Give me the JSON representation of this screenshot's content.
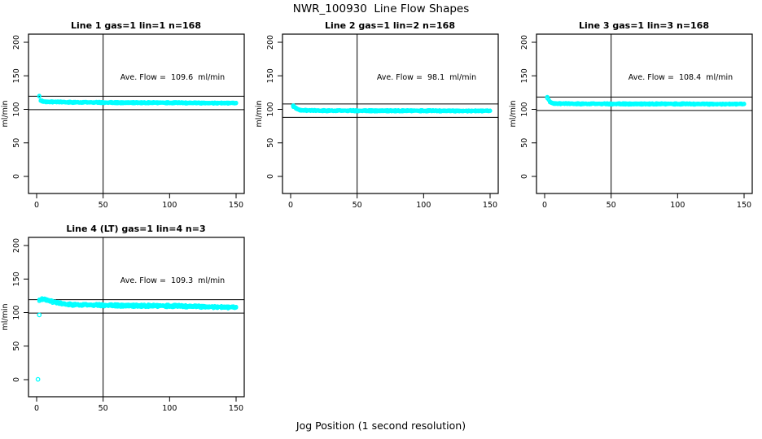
{
  "figure": {
    "title": "NWR_100930  Line Flow Shapes",
    "xlabel": "Jog Position (1 second resolution)",
    "background_color": "#FFFFFF",
    "axis_color": "#000000"
  },
  "chart_data": {
    "type": "scatter",
    "title": "NWR_100930  Line Flow Shapes",
    "xlabel": "Jog Position (1 second resolution)",
    "ylabel": "ml/min",
    "point_color": "#00FFFF",
    "line_color": "#000000",
    "x_ticks": [
      0,
      50,
      100,
      150
    ],
    "y_ticks": [
      0,
      50,
      100,
      150,
      200
    ],
    "xlim": [
      -6,
      156
    ],
    "ylim": [
      -25,
      212
    ],
    "vline_x": 50,
    "grid": false,
    "legend": "none",
    "panels": [
      {
        "title": "Line 1 gas=1 lin=1 n=168",
        "line": 1,
        "gas": 1,
        "lin": 1,
        "n": 168,
        "annotation": "Ave. Flow =  109.6  ml/min",
        "ave_flow": 109.6,
        "ref_lines": [
          119.6,
          99.6
        ],
        "x_range": [
          2,
          150
        ],
        "band": 0.9,
        "outliers": [],
        "profile": [
          [
            2,
            120
          ],
          [
            3,
            113
          ],
          [
            5,
            111.5
          ],
          [
            10,
            111
          ],
          [
            30,
            110.5
          ],
          [
            60,
            110
          ],
          [
            100,
            109.8
          ],
          [
            150,
            109.3
          ]
        ]
      },
      {
        "title": "Line 2 gas=1 lin=2 n=168",
        "line": 2,
        "gas": 1,
        "lin": 2,
        "n": 168,
        "annotation": "Ave. Flow =  98.1  ml/min",
        "ave_flow": 98.1,
        "ref_lines": [
          108.1,
          88.1
        ],
        "x_range": [
          2,
          150
        ],
        "band": 0.9,
        "outliers": [
          [
            2,
            105.5
          ]
        ],
        "profile": [
          [
            2,
            104.5
          ],
          [
            3,
            103.5
          ],
          [
            4,
            101.5
          ],
          [
            6,
            99.5
          ],
          [
            8,
            98.6
          ],
          [
            15,
            98.1
          ],
          [
            50,
            97.9
          ],
          [
            100,
            97.8
          ],
          [
            150,
            97.7
          ]
        ]
      },
      {
        "title": "Line 3 gas=1 lin=3 n=168",
        "line": 3,
        "gas": 1,
        "lin": 3,
        "n": 168,
        "annotation": "Ave. Flow =  108.4  ml/min",
        "ave_flow": 108.4,
        "ref_lines": [
          118.4,
          98.4
        ],
        "x_range": [
          2,
          150
        ],
        "band": 0.9,
        "outliers": [
          [
            2,
            118
          ]
        ],
        "profile": [
          [
            2,
            117.5
          ],
          [
            3,
            114.5
          ],
          [
            4,
            111
          ],
          [
            6,
            109
          ],
          [
            10,
            108.4
          ],
          [
            50,
            108.1
          ],
          [
            100,
            108
          ],
          [
            150,
            107.9
          ]
        ]
      },
      {
        "title": "Line 4 (LT) gas=1 lin=4 n=3",
        "line": 4,
        "gas": 1,
        "lin": 4,
        "n": 3,
        "annotation": "Ave. Flow =  109.3  ml/min",
        "ave_flow": 109.3,
        "ref_lines": [
          119.3,
          99.3
        ],
        "x_range": [
          2,
          150
        ],
        "band": 1.6,
        "outliers": [
          [
            1,
            0.5
          ],
          [
            2,
            96.5
          ]
        ],
        "profile": [
          [
            2,
            119
          ],
          [
            4,
            119.6
          ],
          [
            6,
            120
          ],
          [
            8,
            118.6
          ],
          [
            12,
            116
          ],
          [
            16,
            114
          ],
          [
            20,
            113
          ],
          [
            25,
            112.2
          ],
          [
            30,
            111.7
          ],
          [
            40,
            111.2
          ],
          [
            50,
            111
          ],
          [
            70,
            110.3
          ],
          [
            100,
            109.8
          ],
          [
            120,
            109.3
          ],
          [
            150,
            107.7
          ]
        ]
      }
    ]
  }
}
